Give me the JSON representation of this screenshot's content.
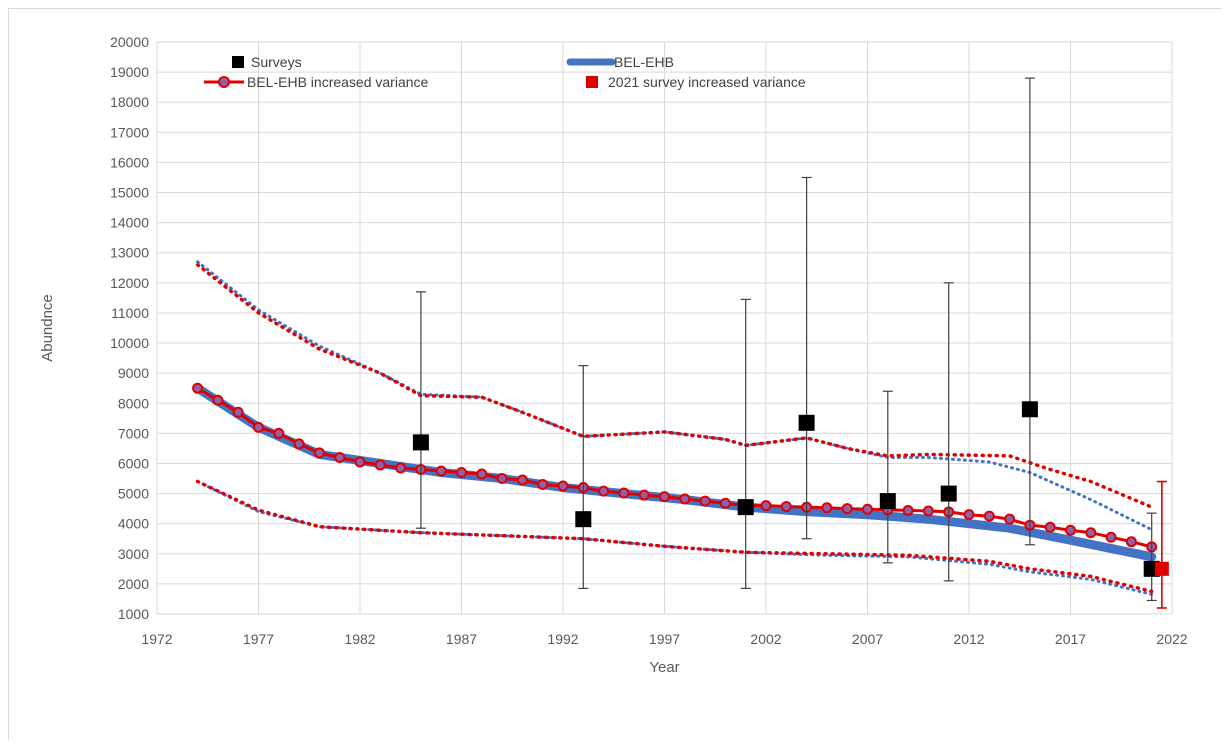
{
  "chart_data": {
    "type": "line",
    "title": "",
    "xlabel": "Year",
    "ylabel": "Abundnce",
    "xlim": [
      1972,
      2022
    ],
    "ylim": [
      1000,
      20000
    ],
    "x_ticks": [
      1972,
      1977,
      1982,
      1987,
      1992,
      1997,
      2002,
      2007,
      2012,
      2017,
      2022
    ],
    "y_ticks": [
      1000,
      2000,
      3000,
      4000,
      5000,
      6000,
      7000,
      8000,
      9000,
      10000,
      11000,
      12000,
      13000,
      14000,
      15000,
      16000,
      17000,
      18000,
      19000,
      20000
    ],
    "grid": true,
    "legend_position": "top",
    "legend": [
      {
        "label": "Surveys",
        "key": "surveys"
      },
      {
        "label": "BEL-EHB",
        "key": "bel_ehb"
      },
      {
        "label": "BEL-EHB increased variance",
        "key": "bel_ehb_iv"
      },
      {
        "label": "2021 survey increased variance",
        "key": "survey_2021_iv"
      }
    ],
    "colors": {
      "bel_ehb": "#4472c4",
      "increased_variance": "#e00000",
      "marker_fill": "#8e62a9",
      "survey": "#000000",
      "survey_iv": "#e00000",
      "error_bar": "#404040"
    },
    "series": {
      "bel_ehb": {
        "name": "BEL-EHB",
        "x": [
          1974,
          1977,
          1980,
          1983,
          1986,
          1989,
          1992,
          1995,
          1998,
          2001,
          2004,
          2007,
          2010,
          2014,
          2017,
          2021
        ],
        "y": [
          8500,
          7200,
          6300,
          6000,
          5700,
          5500,
          5200,
          5000,
          4800,
          4550,
          4400,
          4300,
          4150,
          3850,
          3450,
          2900
        ]
      },
      "bel_ehb_upper": {
        "x": [
          1974,
          1977,
          1980,
          1983,
          1985,
          1988,
          1990,
          1993,
          1997,
          2000,
          2001,
          2004,
          2006,
          2008,
          2010,
          2013,
          2015,
          2018,
          2021
        ],
        "y": [
          12700,
          11100,
          9900,
          9000,
          8300,
          8200,
          7700,
          6900,
          7050,
          6800,
          6600,
          6850,
          6500,
          6200,
          6200,
          6050,
          5700,
          4800,
          3800
        ]
      },
      "bel_ehb_lower": {
        "x": [
          1974,
          1977,
          1980,
          1985,
          1989,
          1993,
          1997,
          2001,
          2005,
          2009,
          2013,
          2015,
          2018,
          2021
        ],
        "y": [
          5400,
          4400,
          3900,
          3700,
          3600,
          3500,
          3250,
          3050,
          2950,
          2900,
          2650,
          2400,
          2150,
          1650
        ]
      },
      "bel_ehb_iv": {
        "name": "BEL-EHB increased variance",
        "x": [
          1974,
          1975,
          1976,
          1977,
          1978,
          1979,
          1980,
          1981,
          1982,
          1983,
          1984,
          1985,
          1986,
          1987,
          1988,
          1989,
          1990,
          1991,
          1992,
          1993,
          1994,
          1995,
          1996,
          1997,
          1998,
          1999,
          2000,
          2001,
          2002,
          2003,
          2004,
          2005,
          2006,
          2007,
          2008,
          2009,
          2010,
          2011,
          2012,
          2013,
          2014,
          2015,
          2016,
          2017,
          2018,
          2019,
          2020,
          2021
        ],
        "y": [
          8500,
          8100,
          7700,
          7200,
          7000,
          6650,
          6350,
          6200,
          6050,
          5950,
          5850,
          5800,
          5750,
          5700,
          5650,
          5500,
          5450,
          5300,
          5250,
          5200,
          5080,
          5020,
          4950,
          4900,
          4820,
          4750,
          4680,
          4600,
          4600,
          4570,
          4550,
          4530,
          4500,
          4480,
          4460,
          4440,
          4420,
          4390,
          4300,
          4250,
          4150,
          3950,
          3880,
          3780,
          3700,
          3550,
          3400,
          3230
        ]
      },
      "bel_ehb_iv_upper": {
        "x": [
          1974,
          1977,
          1980,
          1983,
          1985,
          1988,
          1990,
          1993,
          1997,
          2000,
          2001,
          2004,
          2006,
          2008,
          2010,
          2014,
          2016,
          2018,
          2021
        ],
        "y": [
          12600,
          11000,
          9800,
          9000,
          8250,
          8200,
          7700,
          6900,
          7050,
          6800,
          6600,
          6850,
          6500,
          6250,
          6300,
          6250,
          5800,
          5400,
          4550
        ]
      },
      "bel_ehb_iv_lower": {
        "x": [
          1974,
          1977,
          1980,
          1985,
          1989,
          1993,
          1997,
          2001,
          2005,
          2009,
          2013,
          2015,
          2018,
          2021
        ],
        "y": [
          5400,
          4450,
          3900,
          3700,
          3600,
          3500,
          3250,
          3050,
          3000,
          2950,
          2750,
          2500,
          2250,
          1750
        ]
      }
    },
    "surveys": [
      {
        "x": 1985,
        "y": 6700,
        "lo": 3850,
        "hi": 11700
      },
      {
        "x": 1993,
        "y": 4150,
        "lo": 1850,
        "hi": 9250
      },
      {
        "x": 2001,
        "y": 4550,
        "lo": 1850,
        "hi": 11450
      },
      {
        "x": 2004,
        "y": 7350,
        "lo": 3500,
        "hi": 15500
      },
      {
        "x": 2008,
        "y": 4750,
        "lo": 2700,
        "hi": 8400
      },
      {
        "x": 2011,
        "y": 5000,
        "lo": 2100,
        "hi": 12000
      },
      {
        "x": 2015,
        "y": 7800,
        "lo": 3300,
        "hi": 18800
      },
      {
        "x": 2021,
        "y": 2500,
        "lo": 1450,
        "hi": 4350
      }
    ],
    "survey_2021_iv": {
      "x": 2021.5,
      "y": 2500,
      "lo": 1200,
      "hi": 5400
    }
  }
}
